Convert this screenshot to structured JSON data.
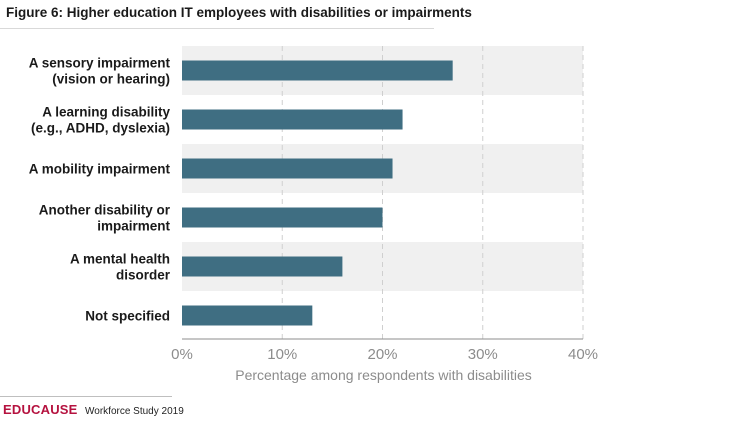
{
  "figure": {
    "title": "Figure 6: Higher education IT employees with disabilities or impairments"
  },
  "footer": {
    "brand": "EDUCAUSE",
    "study": "Workforce Study 2019"
  },
  "colors": {
    "bar": "#3f6e82",
    "band": "#f0f0f0",
    "grid": "#cfcfcf",
    "tick_text": "#8c8c8c",
    "label_text": "#1a1a1a",
    "brand": "#b5123f"
  },
  "chart_data": {
    "type": "bar",
    "orientation": "horizontal",
    "title": "Figure 6: Higher education IT employees with disabilities or impairments",
    "categories": [
      [
        "A sensory impairment",
        "(vision or hearing)"
      ],
      [
        "A learning disability",
        "(e.g., ADHD, dyslexia)"
      ],
      [
        "A mobility impairment"
      ],
      [
        "Another disability or",
        "impairment"
      ],
      [
        "A mental health",
        "disorder"
      ],
      [
        "Not specified"
      ]
    ],
    "values": [
      27,
      22,
      21,
      20,
      16,
      13
    ],
    "xlabel": "Percentage among respondents with disabilities",
    "ylabel": "",
    "xlim": [
      0,
      40
    ],
    "ticks": [
      0,
      10,
      20,
      30,
      40
    ],
    "tick_labels": [
      "0%",
      "10%",
      "20%",
      "30%",
      "40%"
    ],
    "grid": true,
    "legend": "none"
  }
}
